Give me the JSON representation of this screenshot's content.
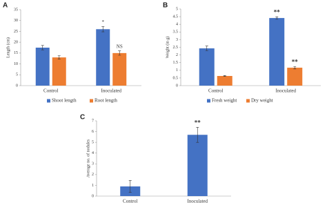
{
  "chart_data": [
    {
      "type": "bar",
      "label": "A",
      "ylabel": "Length (cm)",
      "categories": [
        "Control",
        "Inoculated"
      ],
      "series": [
        {
          "name": "Shoot length",
          "color": "#4472c4",
          "values": [
            17.5,
            26
          ],
          "errors": [
            1,
            1.2
          ],
          "annotations": [
            null,
            "*"
          ]
        },
        {
          "name": "Root length",
          "color": "#ed7d31",
          "values": [
            13,
            15
          ],
          "errors": [
            0.8,
            1
          ],
          "annotations": [
            null,
            "NS"
          ]
        }
      ],
      "ylim": [
        0,
        35
      ],
      "yticks": [
        0,
        5,
        10,
        15,
        20,
        25,
        30,
        35
      ]
    },
    {
      "type": "bar",
      "label": "B",
      "ylabel": "Weight (in g)",
      "categories": [
        "Control",
        "Inoculated"
      ],
      "series": [
        {
          "name": "Fresh weight",
          "color": "#4472c4",
          "values": [
            2.43,
            4.41
          ],
          "errors": [
            0.15,
            0.08
          ],
          "annotations": [
            null,
            "**"
          ]
        },
        {
          "name": "Dry weight",
          "color": "#ed7d31",
          "values": [
            0.63,
            1.17
          ],
          "errors": [
            0.03,
            0.08
          ],
          "annotations": [
            null,
            "**"
          ]
        }
      ],
      "ylim": [
        0,
        5
      ],
      "yticks": [
        0,
        0.5,
        1,
        1.5,
        2,
        2.5,
        3,
        3.5,
        4,
        4.5,
        5
      ]
    },
    {
      "type": "bar",
      "label": "C",
      "ylabel": "Average no. of nodules",
      "categories": [
        "Control",
        "Inoculated"
      ],
      "series": [
        {
          "color": "#4472c4",
          "values": [
            0.9,
            5.7
          ],
          "errors": [
            0.55,
            0.7
          ],
          "annotations": [
            null,
            "**"
          ]
        }
      ],
      "ylim": [
        0,
        7
      ],
      "yticks": [
        0,
        1,
        2,
        3,
        4,
        5,
        6,
        7
      ]
    }
  ]
}
